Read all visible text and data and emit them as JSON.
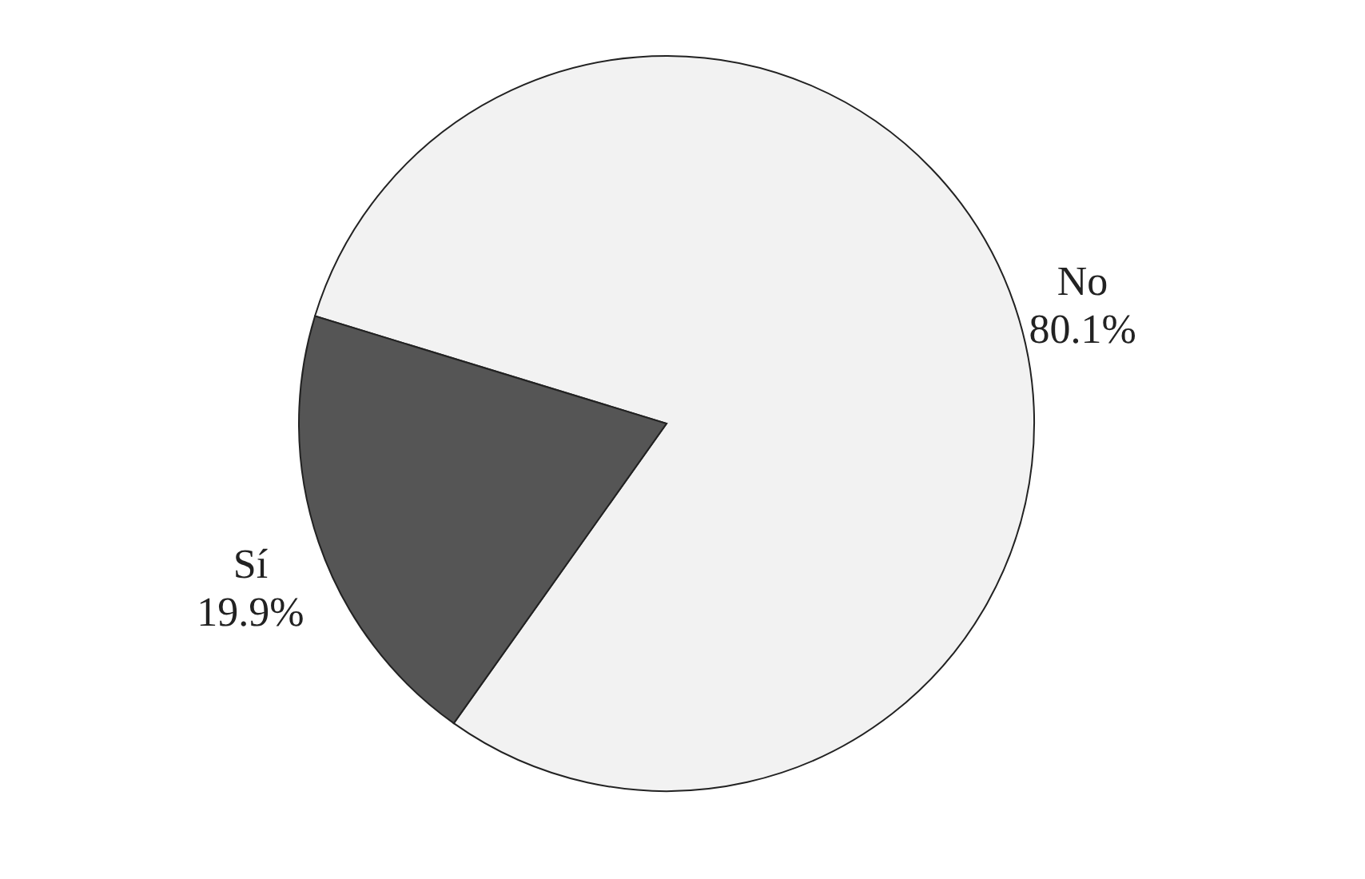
{
  "chart_data": {
    "type": "pie",
    "categories": [
      "No",
      "Sí"
    ],
    "values": [
      80.1,
      19.9
    ],
    "colors": [
      "#f2f2f2",
      "#555555"
    ],
    "value_labels": [
      "80.1%",
      "19.9%"
    ],
    "legend": false
  }
}
